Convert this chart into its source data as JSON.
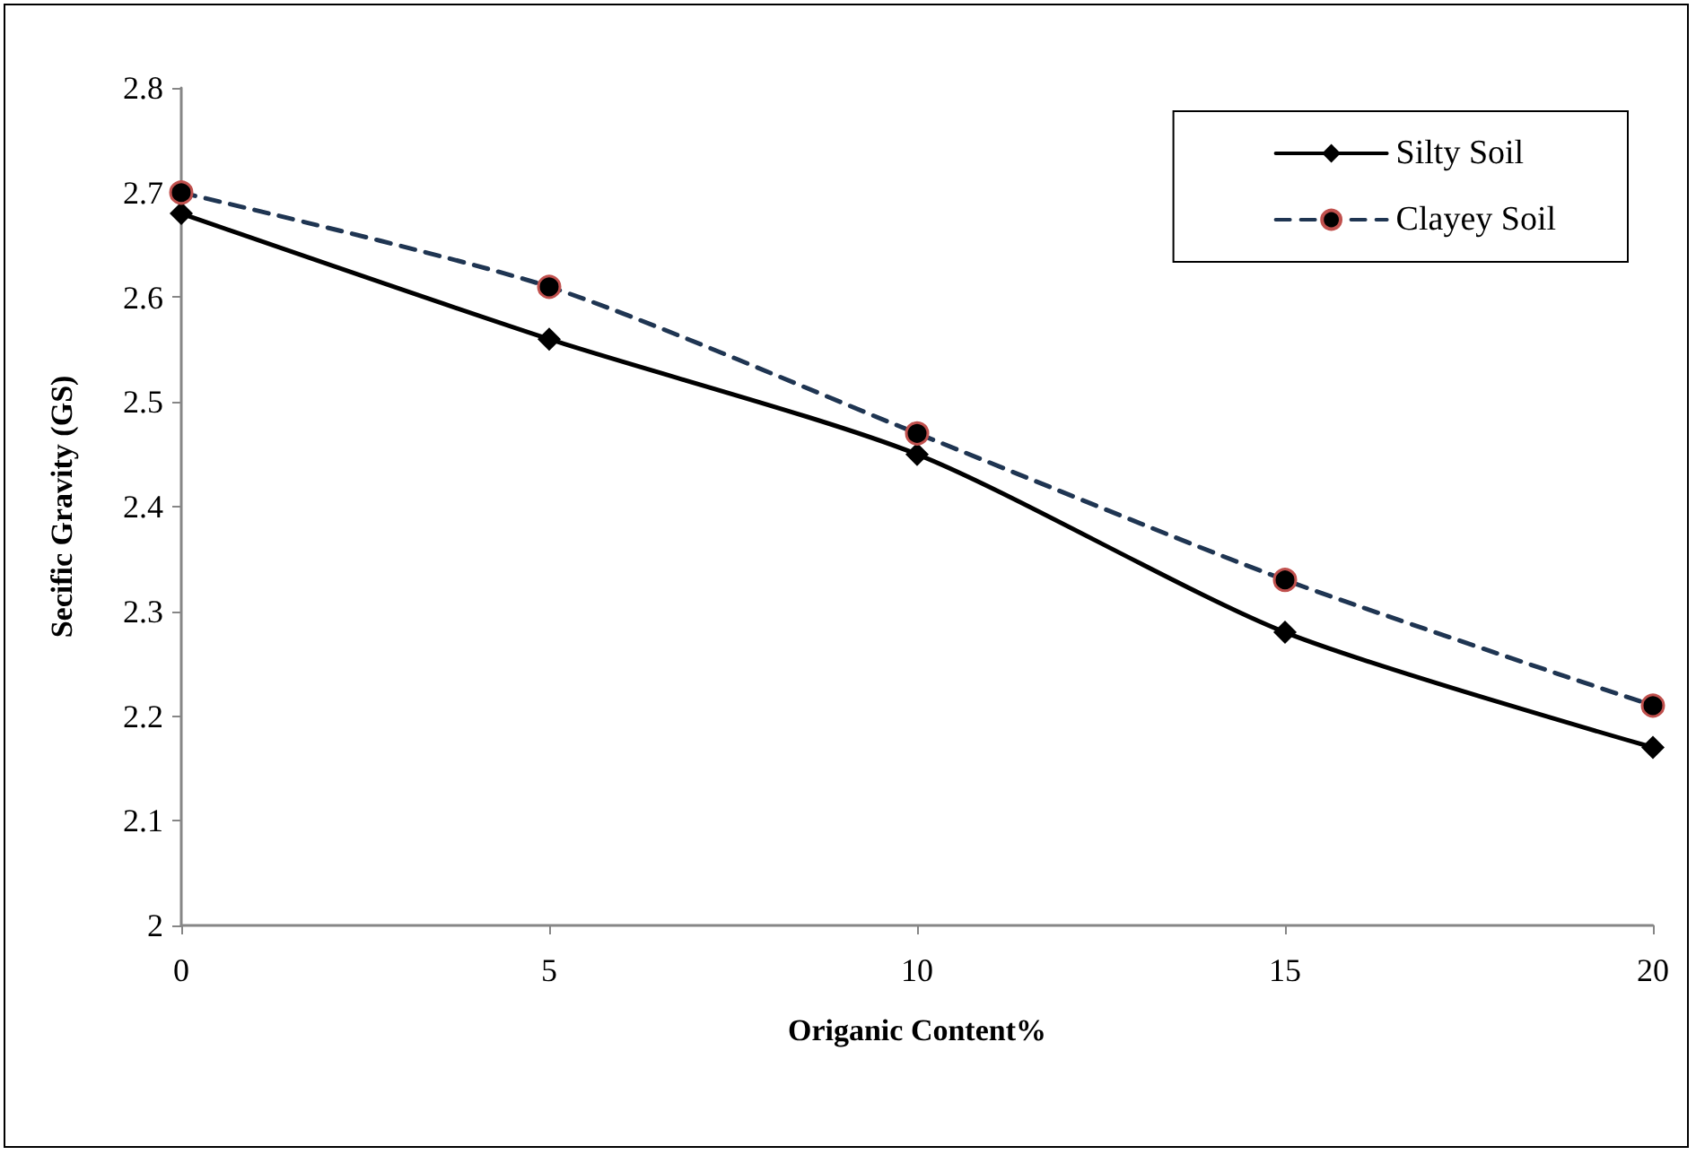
{
  "chart_data": {
    "type": "line",
    "xlabel": "Origanic Content%",
    "ylabel": "Secific Gravity (GS)",
    "x": [
      0,
      5,
      10,
      15,
      20
    ],
    "series": [
      {
        "name": "Silty Soil",
        "color": "#000000",
        "marker": "diamond",
        "line_style": "solid",
        "values": [
          2.68,
          2.56,
          2.45,
          2.28,
          2.17
        ]
      },
      {
        "name": "Clayey Soil",
        "color": "#1f3552",
        "marker": "circle",
        "line_style": "dashed",
        "values": [
          2.7,
          2.61,
          2.47,
          2.33,
          2.21
        ]
      }
    ],
    "xlim": [
      0,
      20
    ],
    "xticks": [
      0,
      5,
      10,
      15,
      20
    ],
    "ylim": [
      2,
      2.8
    ],
    "yticks": [
      2,
      2.1,
      2.2,
      2.3,
      2.4,
      2.5,
      2.6,
      2.7,
      2.8
    ],
    "grid": false,
    "legend": "top right"
  }
}
